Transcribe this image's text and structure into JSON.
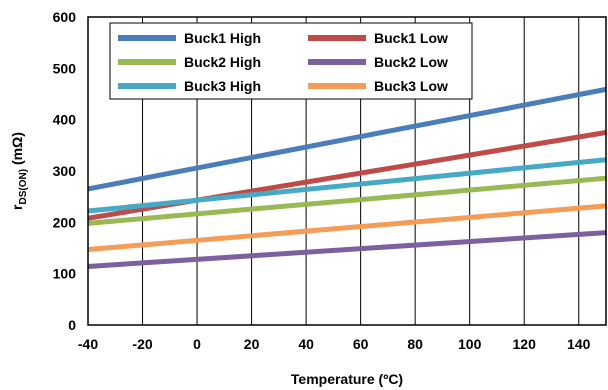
{
  "chart_data": {
    "type": "line",
    "xlabel": "Temperature (ºC)",
    "ylabel_main": "r",
    "ylabel_sub": "DS(ON)",
    "ylabel_unit": " (mΩ)",
    "xlim": [
      -40,
      150
    ],
    "ylim": [
      0,
      600
    ],
    "xticks": [
      "-40",
      "-20",
      "0",
      "20",
      "40",
      "60",
      "80",
      "100",
      "120",
      "140"
    ],
    "yticks": [
      "0",
      "100",
      "200",
      "300",
      "400",
      "500",
      "600"
    ],
    "grid": "vertical",
    "legend_position": "top-left",
    "series": [
      {
        "name": "Buck1 High",
        "color": "#4a7ebb",
        "x": [
          -40,
          150
        ],
        "y": [
          265,
          459
        ]
      },
      {
        "name": "Buck1 Low",
        "color": "#be4b48",
        "x": [
          -40,
          150
        ],
        "y": [
          208,
          375
        ]
      },
      {
        "name": "Buck2 High",
        "color": "#98b954",
        "x": [
          -40,
          150
        ],
        "y": [
          198,
          286
        ]
      },
      {
        "name": "Buck2 Low",
        "color": "#7d60a0",
        "x": [
          -40,
          150
        ],
        "y": [
          114,
          180
        ]
      },
      {
        "name": "Buck3 High",
        "color": "#46aac5",
        "x": [
          -40,
          150
        ],
        "y": [
          222,
          322
        ]
      },
      {
        "name": "Buck3 Low",
        "color": "#f59d56",
        "x": [
          -40,
          150
        ],
        "y": [
          147,
          232
        ]
      }
    ]
  }
}
